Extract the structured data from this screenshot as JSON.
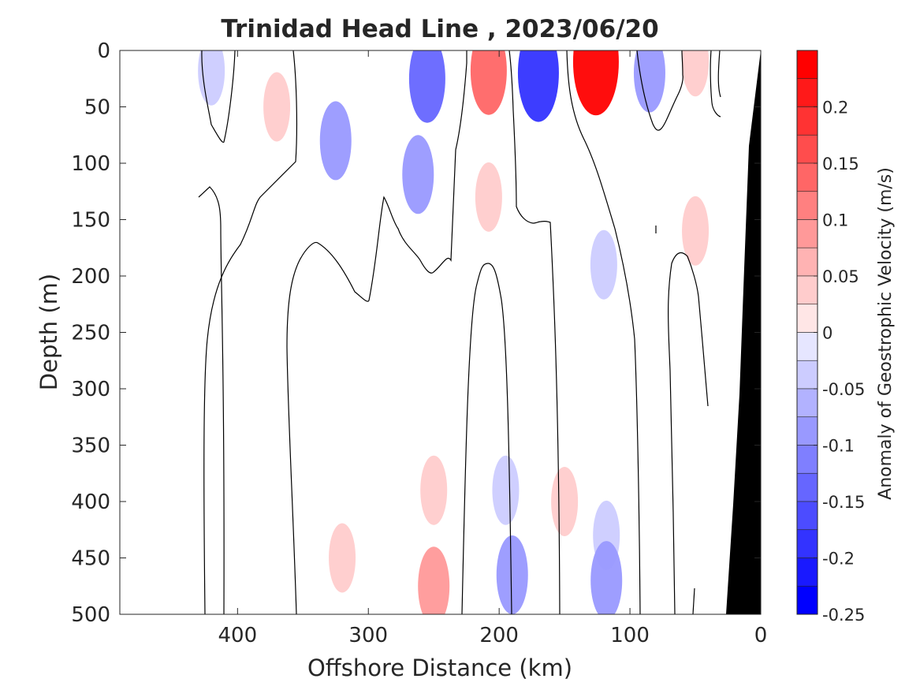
{
  "chart_data": {
    "type": "heatmap",
    "title": "Trinidad Head Line , 2023/06/20",
    "xlabel": "Offshore Distance (km)",
    "ylabel": "Depth (m)",
    "xlim": [
      490,
      0
    ],
    "ylim": [
      0,
      500
    ],
    "x_reversed": true,
    "y_reversed": true,
    "x_ticks": [
      400,
      300,
      200,
      100,
      0
    ],
    "y_ticks": [
      0,
      50,
      100,
      150,
      200,
      250,
      300,
      350,
      400,
      450,
      500
    ],
    "colorbar": {
      "label": "Anomaly of Geostrophic Velocity (m/s)",
      "range": [
        -0.25,
        0.25
      ],
      "ticks": [
        0.2,
        0.15,
        0.1,
        0.05,
        0,
        -0.05,
        -0.1,
        -0.15,
        -0.2,
        -0.25
      ],
      "tick_labels": [
        "0.2",
        "0.15",
        "0.1",
        "0.05",
        "0",
        "-0.05",
        "-0.1",
        "-0.15",
        "-0.2",
        "-0.25"
      ],
      "colors": {
        "max_positive": "#ff0000",
        "max_negative": "#0000ff",
        "neutral": "#ffffff"
      }
    },
    "features": [
      {
        "x": 420,
        "depth": 18,
        "value": -0.05
      },
      {
        "x": 370,
        "depth": 50,
        "value": 0.05
      },
      {
        "x": 325,
        "depth": 80,
        "value": -0.1
      },
      {
        "x": 262,
        "depth": 110,
        "value": -0.1
      },
      {
        "x": 255,
        "depth": 25,
        "value": -0.15
      },
      {
        "x": 208,
        "depth": 18,
        "value": 0.15
      },
      {
        "x": 208,
        "depth": 130,
        "value": 0.05
      },
      {
        "x": 170,
        "depth": 20,
        "value": -0.2
      },
      {
        "x": 126,
        "depth": 10,
        "value": 0.25
      },
      {
        "x": 120,
        "depth": 190,
        "value": -0.05
      },
      {
        "x": 85,
        "depth": 20,
        "value": -0.1
      },
      {
        "x": 50,
        "depth": 10,
        "value": 0.05
      },
      {
        "x": 320,
        "depth": 450,
        "value": 0.05
      },
      {
        "x": 250,
        "depth": 390,
        "value": 0.05
      },
      {
        "x": 250,
        "depth": 475,
        "value": 0.1
      },
      {
        "x": 195,
        "depth": 390,
        "value": -0.05
      },
      {
        "x": 190,
        "depth": 465,
        "value": -0.1
      },
      {
        "x": 150,
        "depth": 400,
        "value": 0.05
      },
      {
        "x": 118,
        "depth": 430,
        "value": -0.05
      },
      {
        "x": 118,
        "depth": 470,
        "value": -0.1
      },
      {
        "x": 50,
        "depth": 160,
        "value": 0.05
      }
    ],
    "grid": false,
    "legend": "none",
    "land_mask": "black wedge at inshore end (0–25 km), widening with depth"
  }
}
